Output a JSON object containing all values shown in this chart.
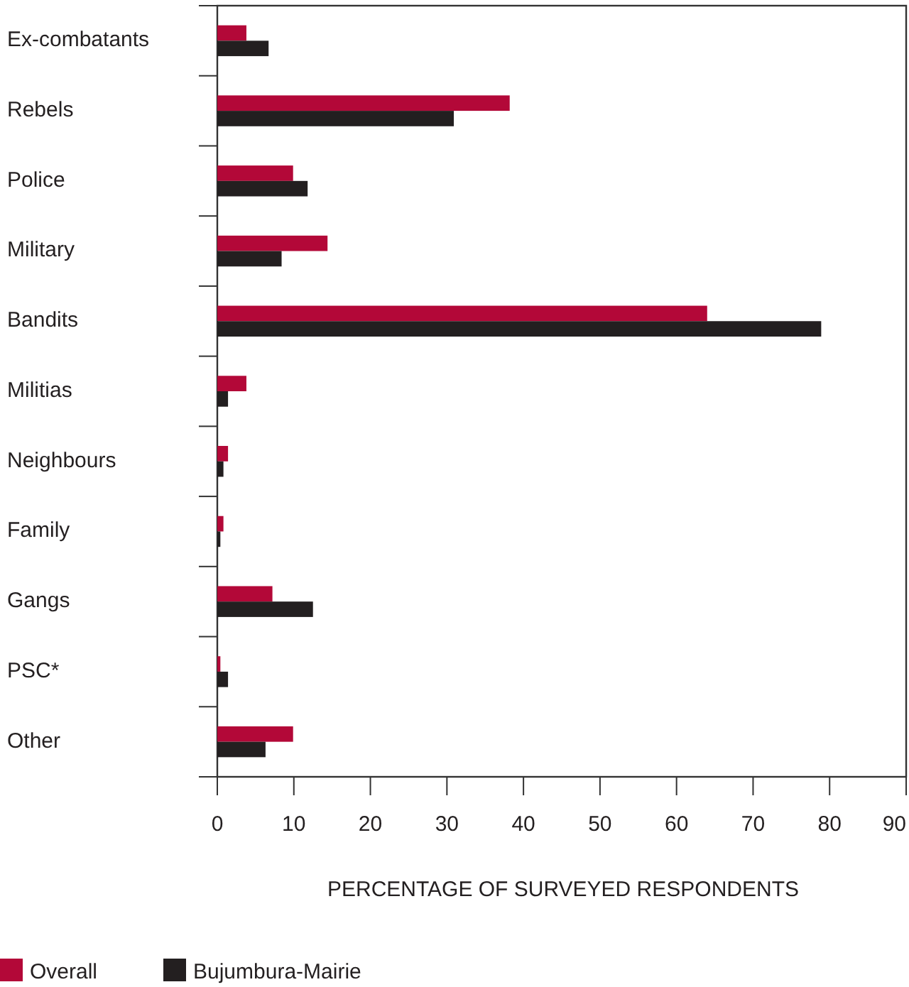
{
  "chart_data": {
    "type": "bar",
    "orientation": "horizontal",
    "xlabel": "PERCENTAGE OF SURVEYED RESPONDENTS",
    "categories": [
      "Ex-combatants",
      "Rebels",
      "Police",
      "Military",
      "Bandits",
      "Militias",
      "Neighbours",
      "Family",
      "Gangs",
      "PSC*",
      "Other"
    ],
    "series": [
      {
        "name": "Overall",
        "color": "#b30838",
        "values": [
          3.8,
          38.2,
          9.9,
          14.4,
          64.0,
          3.8,
          1.4,
          0.8,
          7.2,
          0.4,
          9.9
        ]
      },
      {
        "name": "Bujumbura-Mairie",
        "color": "#231f20",
        "values": [
          6.7,
          30.9,
          11.8,
          8.4,
          78.9,
          1.4,
          0.8,
          0.4,
          12.5,
          1.4,
          6.3
        ]
      }
    ],
    "xlim": [
      0,
      90
    ],
    "xticks": [
      0,
      10,
      20,
      30,
      40,
      50,
      60,
      70,
      80,
      90
    ],
    "grid": false,
    "legend": "bottom left"
  }
}
